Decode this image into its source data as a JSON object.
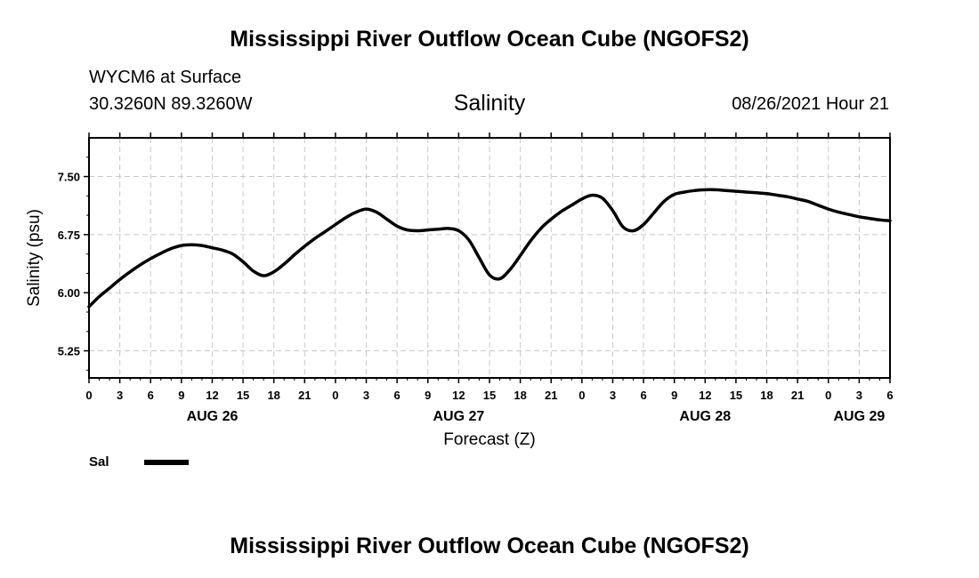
{
  "header": {
    "title": "Mississippi River Outflow Ocean Cube (NGOFS2)",
    "station": "WYCM6 at Surface",
    "coords": "30.3260N  89.3260W",
    "variable": "Salinity",
    "datetime": "08/26/2021 Hour 21"
  },
  "footer": {
    "title": "Mississippi River Outflow Ocean Cube (NGOFS2)"
  },
  "legend": {
    "label": "Sal"
  },
  "chart_data": {
    "type": "line",
    "title": "Salinity",
    "xlabel": "Forecast (Z)",
    "ylabel": "Salinity (psu)",
    "xlim": [
      0,
      78
    ],
    "ylim": [
      4.9,
      8.0
    ],
    "yticks": [
      5.25,
      6.0,
      6.75,
      7.5
    ],
    "ytick_labels": [
      "5.25",
      "6.00",
      "6.75",
      "7.50"
    ],
    "xtick_hours": [
      0,
      3,
      6,
      9,
      12,
      15,
      18,
      21,
      24,
      27,
      30,
      33,
      36,
      39,
      42,
      45,
      48,
      51,
      54,
      57,
      60,
      63,
      66,
      69,
      72,
      75,
      78
    ],
    "xtick_labels": [
      "0",
      "3",
      "6",
      "9",
      "12",
      "15",
      "18",
      "21",
      "0",
      "3",
      "6",
      "9",
      "12",
      "15",
      "18",
      "21",
      "0",
      "3",
      "6",
      "9",
      "12",
      "15",
      "18",
      "21",
      "0",
      "3",
      "6"
    ],
    "date_labels": [
      {
        "hour": 12,
        "label": "AUG 26"
      },
      {
        "hour": 36,
        "label": "AUG 27"
      },
      {
        "hour": 60,
        "label": "AUG 28"
      },
      {
        "hour": 75,
        "label": "AUG 29"
      }
    ],
    "grid": true,
    "legend_position": "bottom-left",
    "series": [
      {
        "name": "Sal",
        "x": [
          0,
          1,
          2,
          3,
          4,
          5,
          6,
          7,
          8,
          9,
          10,
          11,
          12,
          13,
          14,
          15,
          16,
          17,
          18,
          19,
          20,
          21,
          22,
          23,
          24,
          25,
          26,
          27,
          28,
          29,
          30,
          31,
          32,
          33,
          34,
          35,
          36,
          37,
          38,
          39,
          40,
          41,
          42,
          43,
          44,
          45,
          46,
          47,
          48,
          49,
          50,
          51,
          52,
          53,
          54,
          55,
          56,
          57,
          58,
          59,
          60,
          61,
          62,
          63,
          64,
          65,
          66,
          67,
          68,
          69,
          70,
          71,
          72,
          73,
          74,
          75,
          76,
          77,
          78
        ],
        "y": [
          5.82,
          5.95,
          6.06,
          6.17,
          6.27,
          6.36,
          6.44,
          6.51,
          6.57,
          6.61,
          6.62,
          6.61,
          6.58,
          6.55,
          6.5,
          6.4,
          6.28,
          6.22,
          6.27,
          6.37,
          6.49,
          6.6,
          6.7,
          6.79,
          6.88,
          6.97,
          7.04,
          7.08,
          7.04,
          6.95,
          6.86,
          6.81,
          6.8,
          6.81,
          6.82,
          6.83,
          6.8,
          6.68,
          6.45,
          6.23,
          6.18,
          6.3,
          6.48,
          6.67,
          6.83,
          6.95,
          7.05,
          7.13,
          7.21,
          7.26,
          7.22,
          7.06,
          6.85,
          6.8,
          6.88,
          7.03,
          7.18,
          7.27,
          7.3,
          7.32,
          7.33,
          7.33,
          7.32,
          7.31,
          7.3,
          7.29,
          7.28,
          7.26,
          7.24,
          7.21,
          7.18,
          7.13,
          7.08,
          7.04,
          7.01,
          6.98,
          6.96,
          6.94,
          6.93
        ]
      }
    ]
  }
}
